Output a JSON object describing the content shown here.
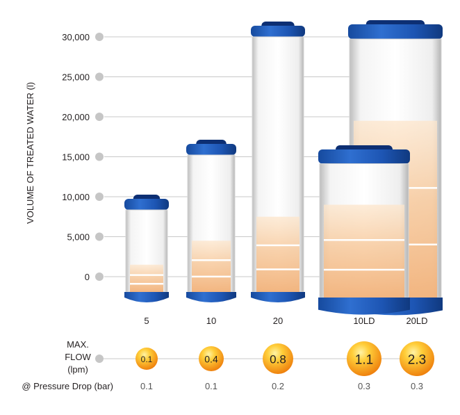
{
  "chart_data": {
    "type": "bar",
    "ylabel": "VOLUME OF TREATED WATER (l)",
    "ylim": [
      0,
      30000
    ],
    "yticks": [
      "0",
      "5,000",
      "10,000",
      "15,000",
      "20,000",
      "25,000",
      "30,000"
    ],
    "ytick_values": [
      0,
      5000,
      10000,
      15000,
      20000,
      25000,
      30000
    ],
    "categories": [
      "5",
      "10",
      "20",
      "10LD",
      "20LD"
    ],
    "values": [
      1500,
      4500,
      7500,
      9000,
      19500
    ],
    "max_flow_label": [
      "MAX.",
      "FLOW",
      "(lpm)"
    ],
    "max_flow_values": [
      "0.1",
      "0.4",
      "0.8",
      "1.1",
      "2.3"
    ],
    "pressure_drop_label": "@ Pressure Drop (bar)",
    "pressure_drop_values": [
      "0.1",
      "0.1",
      "0.2",
      "0.3",
      "0.3"
    ],
    "grid": true
  },
  "colors": {
    "cartridge_cap": "#1d55b3",
    "cartridge_cap_dark": "#0d2f73",
    "fill_light": "#fbdcba",
    "fill_dark": "#f0a86a",
    "gridline": "#c8c8c8",
    "tick_dot": "#c6c6c6",
    "bubble_light": "#ffd84a",
    "bubble_dark": "#f08a12"
  }
}
